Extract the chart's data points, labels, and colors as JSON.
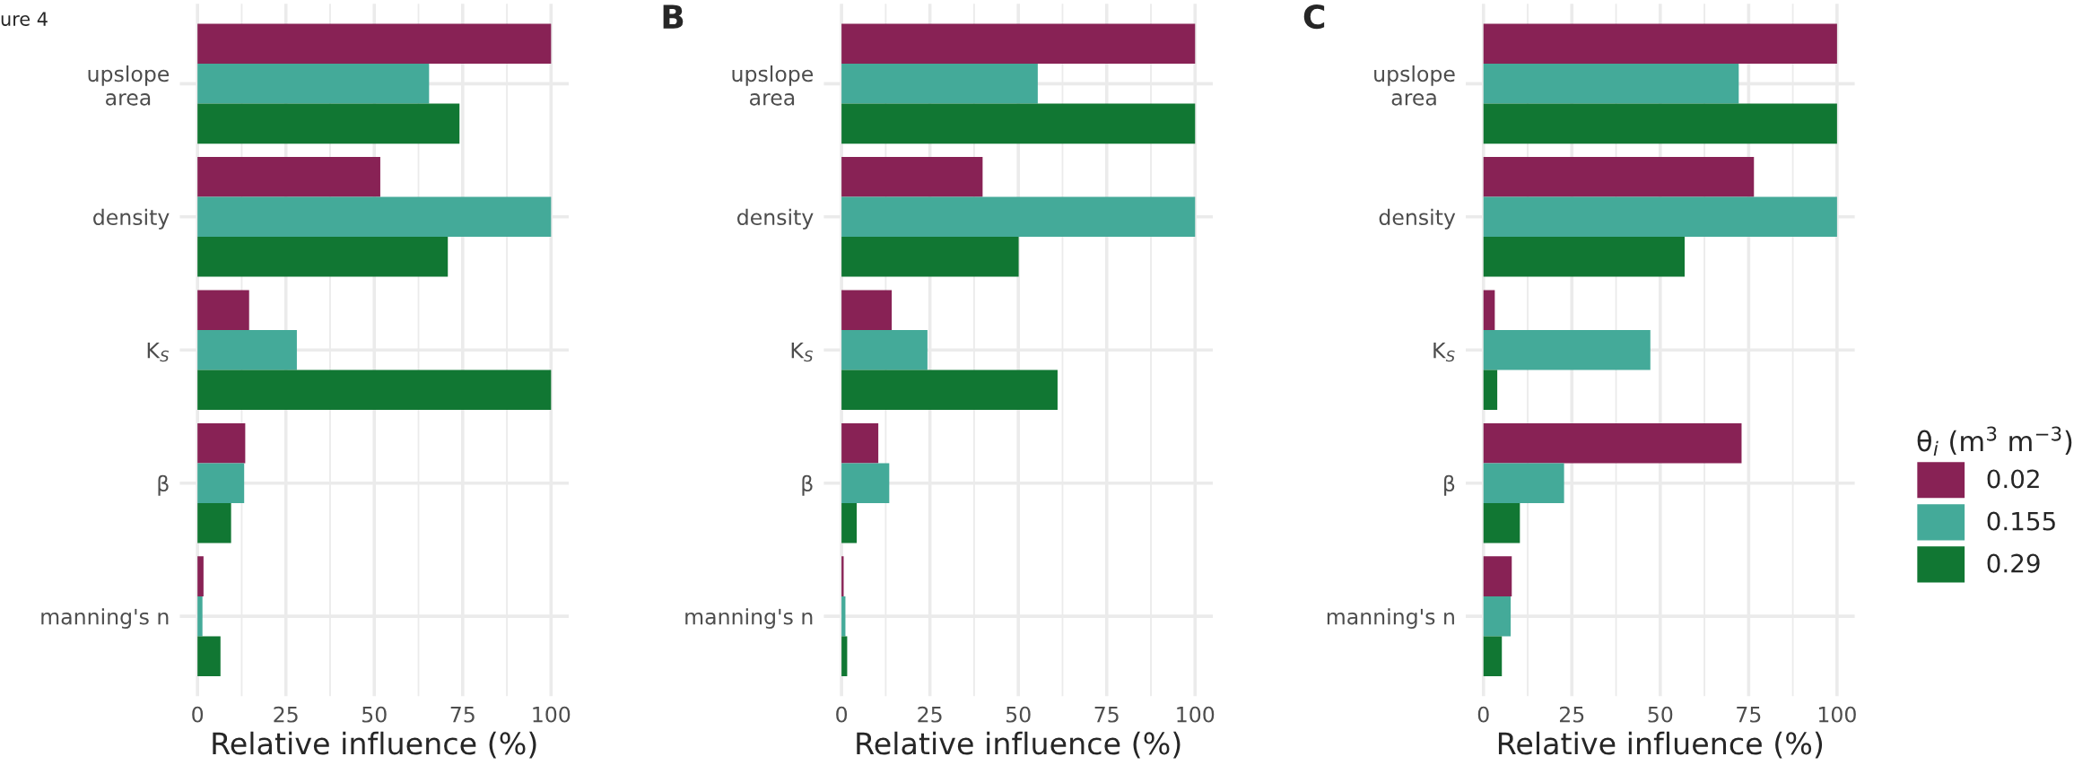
{
  "chart_data": [
    {
      "type": "bar",
      "orientation": "horizontal",
      "title": null,
      "annotations": [
        "ure 4"
      ],
      "xlabel": "Relative influence (%)",
      "categories": [
        "upslope\narea",
        "density",
        "K$_{S}$",
        "β",
        "manning's n"
      ],
      "xlim": [
        -5,
        105
      ],
      "xticks": [
        0,
        {
          "value": 12.5,
          "label": null
        },
        25,
        {
          "value": 37.5,
          "label": null
        },
        50,
        {
          "value": 62.5,
          "label": null
        },
        75,
        {
          "value": 87.5,
          "label": null
        },
        100
      ],
      "grid": true,
      "series": [
        {
          "color": "#882255",
          "values": [
            100,
            51.7,
            14.6,
            13.5,
            1.7
          ]
        },
        {
          "color": "#44aa99",
          "values": [
            65.5,
            100,
            28.1,
            13.2,
            1.4
          ]
        },
        {
          "color": "#117733",
          "values": [
            74.1,
            70.8,
            100,
            9.5,
            6.5
          ]
        }
      ]
    },
    {
      "type": "bar",
      "orientation": "horizontal",
      "title": "B",
      "xlabel": "Relative influence (%)",
      "categories": [
        "upslope\narea",
        "density",
        "K$_{S}$",
        "β",
        "manning's n"
      ],
      "xlim": [
        -5,
        105
      ],
      "xticks": [
        0,
        {
          "value": 12.5,
          "label": null
        },
        25,
        {
          "value": 37.5,
          "label": null
        },
        50,
        {
          "value": 62.5,
          "label": null
        },
        75,
        {
          "value": 87.5,
          "label": null
        },
        100
      ],
      "grid": true,
      "series": [
        {
          "color": "#882255",
          "values": [
            100,
            39.9,
            14.2,
            10.4,
            0.6
          ]
        },
        {
          "color": "#44aa99",
          "values": [
            55.5,
            100,
            24.3,
            13.5,
            1.1
          ]
        },
        {
          "color": "#117733",
          "values": [
            100,
            50.1,
            61.1,
            4.3,
            1.6
          ]
        }
      ]
    },
    {
      "type": "bar",
      "orientation": "horizontal",
      "title": "C",
      "xlabel": "Relative influence (%)",
      "legend_title": "θ$_{i}$ (m$^{3}$ m$^{−3}$)",
      "legend": "right",
      "categories": [
        "upslope\narea",
        "density",
        "K$_{S}$",
        "β",
        "manning's n"
      ],
      "xlim": [
        -5,
        105
      ],
      "xticks": [
        0,
        {
          "value": 12.5,
          "label": null
        },
        25,
        {
          "value": 37.5,
          "label": null
        },
        50,
        {
          "value": 62.5,
          "label": null
        },
        75,
        {
          "value": 87.5,
          "label": null
        },
        100
      ],
      "grid": true,
      "series": [
        {
          "name": "0.02",
          "color": "#882255",
          "values": [
            100,
            76.5,
            3.2,
            73.0,
            8.0
          ]
        },
        {
          "name": "0.155",
          "color": "#44aa99",
          "values": [
            72.2,
            100,
            47.2,
            22.8,
            7.7
          ]
        },
        {
          "name": "0.29",
          "color": "#117733",
          "values": [
            100,
            56.9,
            3.9,
            10.3,
            5.2
          ]
        }
      ]
    }
  ]
}
